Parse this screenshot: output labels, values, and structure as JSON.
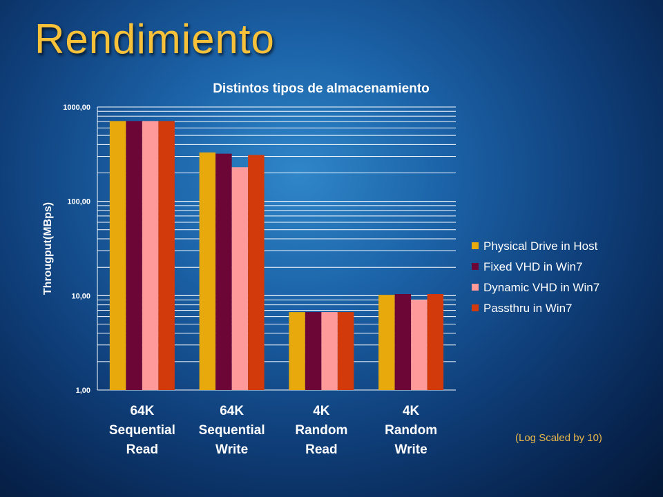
{
  "slide": {
    "title": "Rendimiento",
    "note": "(Log Scaled by 10)"
  },
  "chart_data": {
    "type": "bar",
    "title": "Distintos tipos de almacenamiento",
    "ylabel": "Througput(MBps)",
    "xlabel": "",
    "yscale": "log",
    "ylim": [
      1,
      1000
    ],
    "yticks": [
      1,
      10,
      100,
      1000
    ],
    "ytick_labels": [
      "1,00",
      "10,00",
      "100,00",
      "1000,00"
    ],
    "grid": true,
    "legend_position": "right",
    "categories": [
      [
        "64K",
        "Sequential",
        "Read"
      ],
      [
        "64K",
        "Sequential",
        "Write"
      ],
      [
        "4K",
        "Random",
        "Read"
      ],
      [
        "4K",
        "Random",
        "Write"
      ]
    ],
    "series": [
      {
        "name": "Physical Drive in Host",
        "color": "#e8a90c",
        "values": [
          710,
          330,
          6.7,
          10.2
        ]
      },
      {
        "name": "Fixed VHD in Win7",
        "color": "#6b0637",
        "values": [
          710,
          320,
          6.7,
          10.4
        ]
      },
      {
        "name": "Dynamic VHD in Win7",
        "color": "#ff9a9a",
        "values": [
          710,
          230,
          6.7,
          9.0
        ]
      },
      {
        "name": "Passthru in Win7",
        "color": "#d23a0b",
        "values": [
          710,
          310,
          6.7,
          10.4
        ]
      }
    ]
  }
}
